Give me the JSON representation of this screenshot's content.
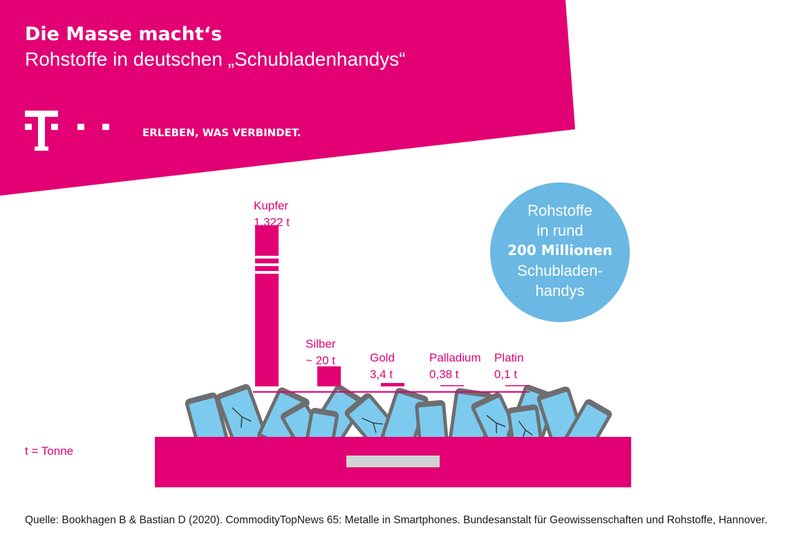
{
  "header": {
    "title": "Die Masse macht‘s",
    "subtitle": "Rohstoffe in deutschen „Schubladenhandys“",
    "slogan": "ERLEBEN, WAS VERBINDET.",
    "logo_icon": "telekom-t-logo"
  },
  "colors": {
    "brand": "#e20074",
    "circle": "#6ab8e3",
    "phone_screen": "#7ccbef",
    "phone_body": "#6d6e70",
    "drawer_handle": "#d1d3d4"
  },
  "circle": {
    "line1": "Rohstoffe",
    "line2": "in rund",
    "line3": "200 Millionen",
    "line4": "Schubladen-",
    "line5": "handys"
  },
  "unit_note": "t = Tonne",
  "source": "Quelle: Bookhagen B & Bastian D (2020). CommodityTopNews 65: Metalle in Smartphones. Bundesanstalt für Geowissenschaften und Rohstoffe, Hannover.",
  "chart_data": {
    "type": "bar",
    "categories": [
      "Kupfer",
      "Silber",
      "Gold",
      "Palladium",
      "Platin"
    ],
    "value_labels": [
      "1.322 t",
      "~ 20 t",
      "3,4 t",
      "0,38 t",
      "0,1 t"
    ],
    "values": [
      1322,
      20,
      3.4,
      0.38,
      0.1
    ],
    "unit": "t",
    "axis_break_on": "Kupfer"
  }
}
